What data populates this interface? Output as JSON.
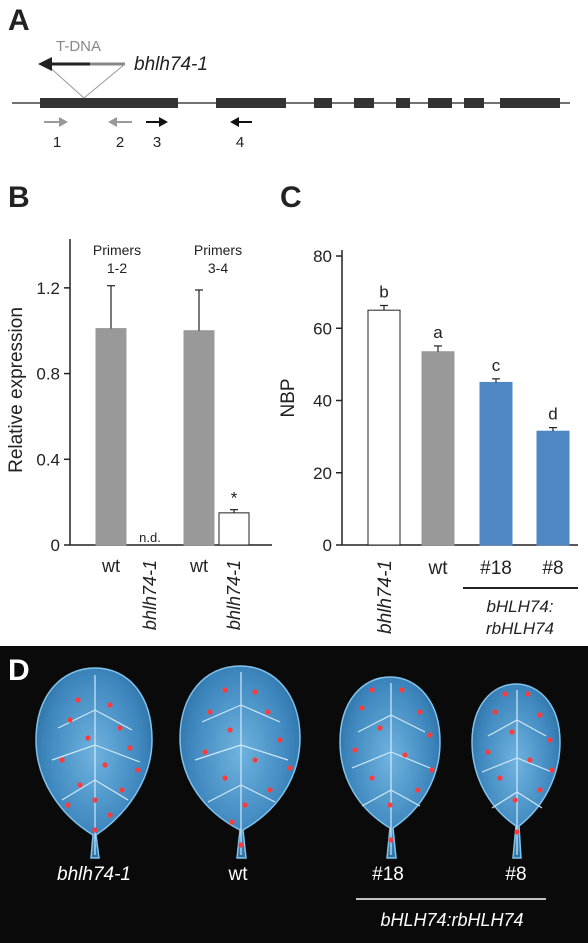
{
  "panels": {
    "a": "A",
    "b": "B",
    "c": "C",
    "d": "D"
  },
  "gene_model": {
    "tdna_label": "T-DNA",
    "allele_label": "bhlh74-1",
    "primers": [
      "1",
      "2",
      "3",
      "4"
    ],
    "colors": {
      "exon": "#333333",
      "tdna": "#888888",
      "primer_gray": "#999999",
      "primer_black": "#111111"
    }
  },
  "panel_b": {
    "ylabel": "Relative expression",
    "group_labels": [
      {
        "title": "Primers",
        "range": "1-2"
      },
      {
        "title": "Primers",
        "range": "3-4"
      }
    ],
    "nd_label": "n.d.",
    "sig_label": "*",
    "x_labels": [
      "wt",
      "bhlh74-1",
      "wt",
      "bhlh74-1"
    ],
    "ticks": [
      "0",
      "0.4",
      "0.8",
      "1.2"
    ]
  },
  "panel_c": {
    "ylabel": "NBP",
    "letters": [
      "b",
      "a",
      "c",
      "d"
    ],
    "x_labels": [
      "bhlh74-1",
      "wt",
      "#18",
      "#8"
    ],
    "group_label": [
      "bHLH74:",
      "rbHLH74"
    ],
    "ticks": [
      "0",
      "20",
      "40",
      "60",
      "80"
    ]
  },
  "chart_data": [
    {
      "type": "bar",
      "categories": [
        "wt",
        "bhlh74-1",
        "wt",
        "bhlh74-1"
      ],
      "values": [
        1.01,
        0,
        1.0,
        0.15
      ],
      "errors": [
        0.2,
        0,
        0.19,
        0.015
      ],
      "colors": [
        "#999999",
        "#ffffff",
        "#999999",
        "#ffffff"
      ],
      "xlabel": "",
      "ylabel": "Relative expression",
      "ylim": [
        0,
        1.4
      ],
      "grid": false
    },
    {
      "type": "bar",
      "categories": [
        "bhlh74-1",
        "wt",
        "#18",
        "#8"
      ],
      "values": [
        65,
        53.5,
        45,
        31.5
      ],
      "errors": [
        1.3,
        1.6,
        1.0,
        1.0
      ],
      "colors": [
        "#ffffff",
        "#999999",
        "#4f87c4",
        "#4f87c4"
      ],
      "xlabel": "",
      "ylabel": "NBP",
      "ylim": [
        0,
        80
      ],
      "grid": false
    }
  ],
  "panel_d": {
    "labels": [
      "bhlh74-1",
      "wt",
      "#18",
      "#8"
    ],
    "group_label": "bHLH74:rbHLH74"
  }
}
